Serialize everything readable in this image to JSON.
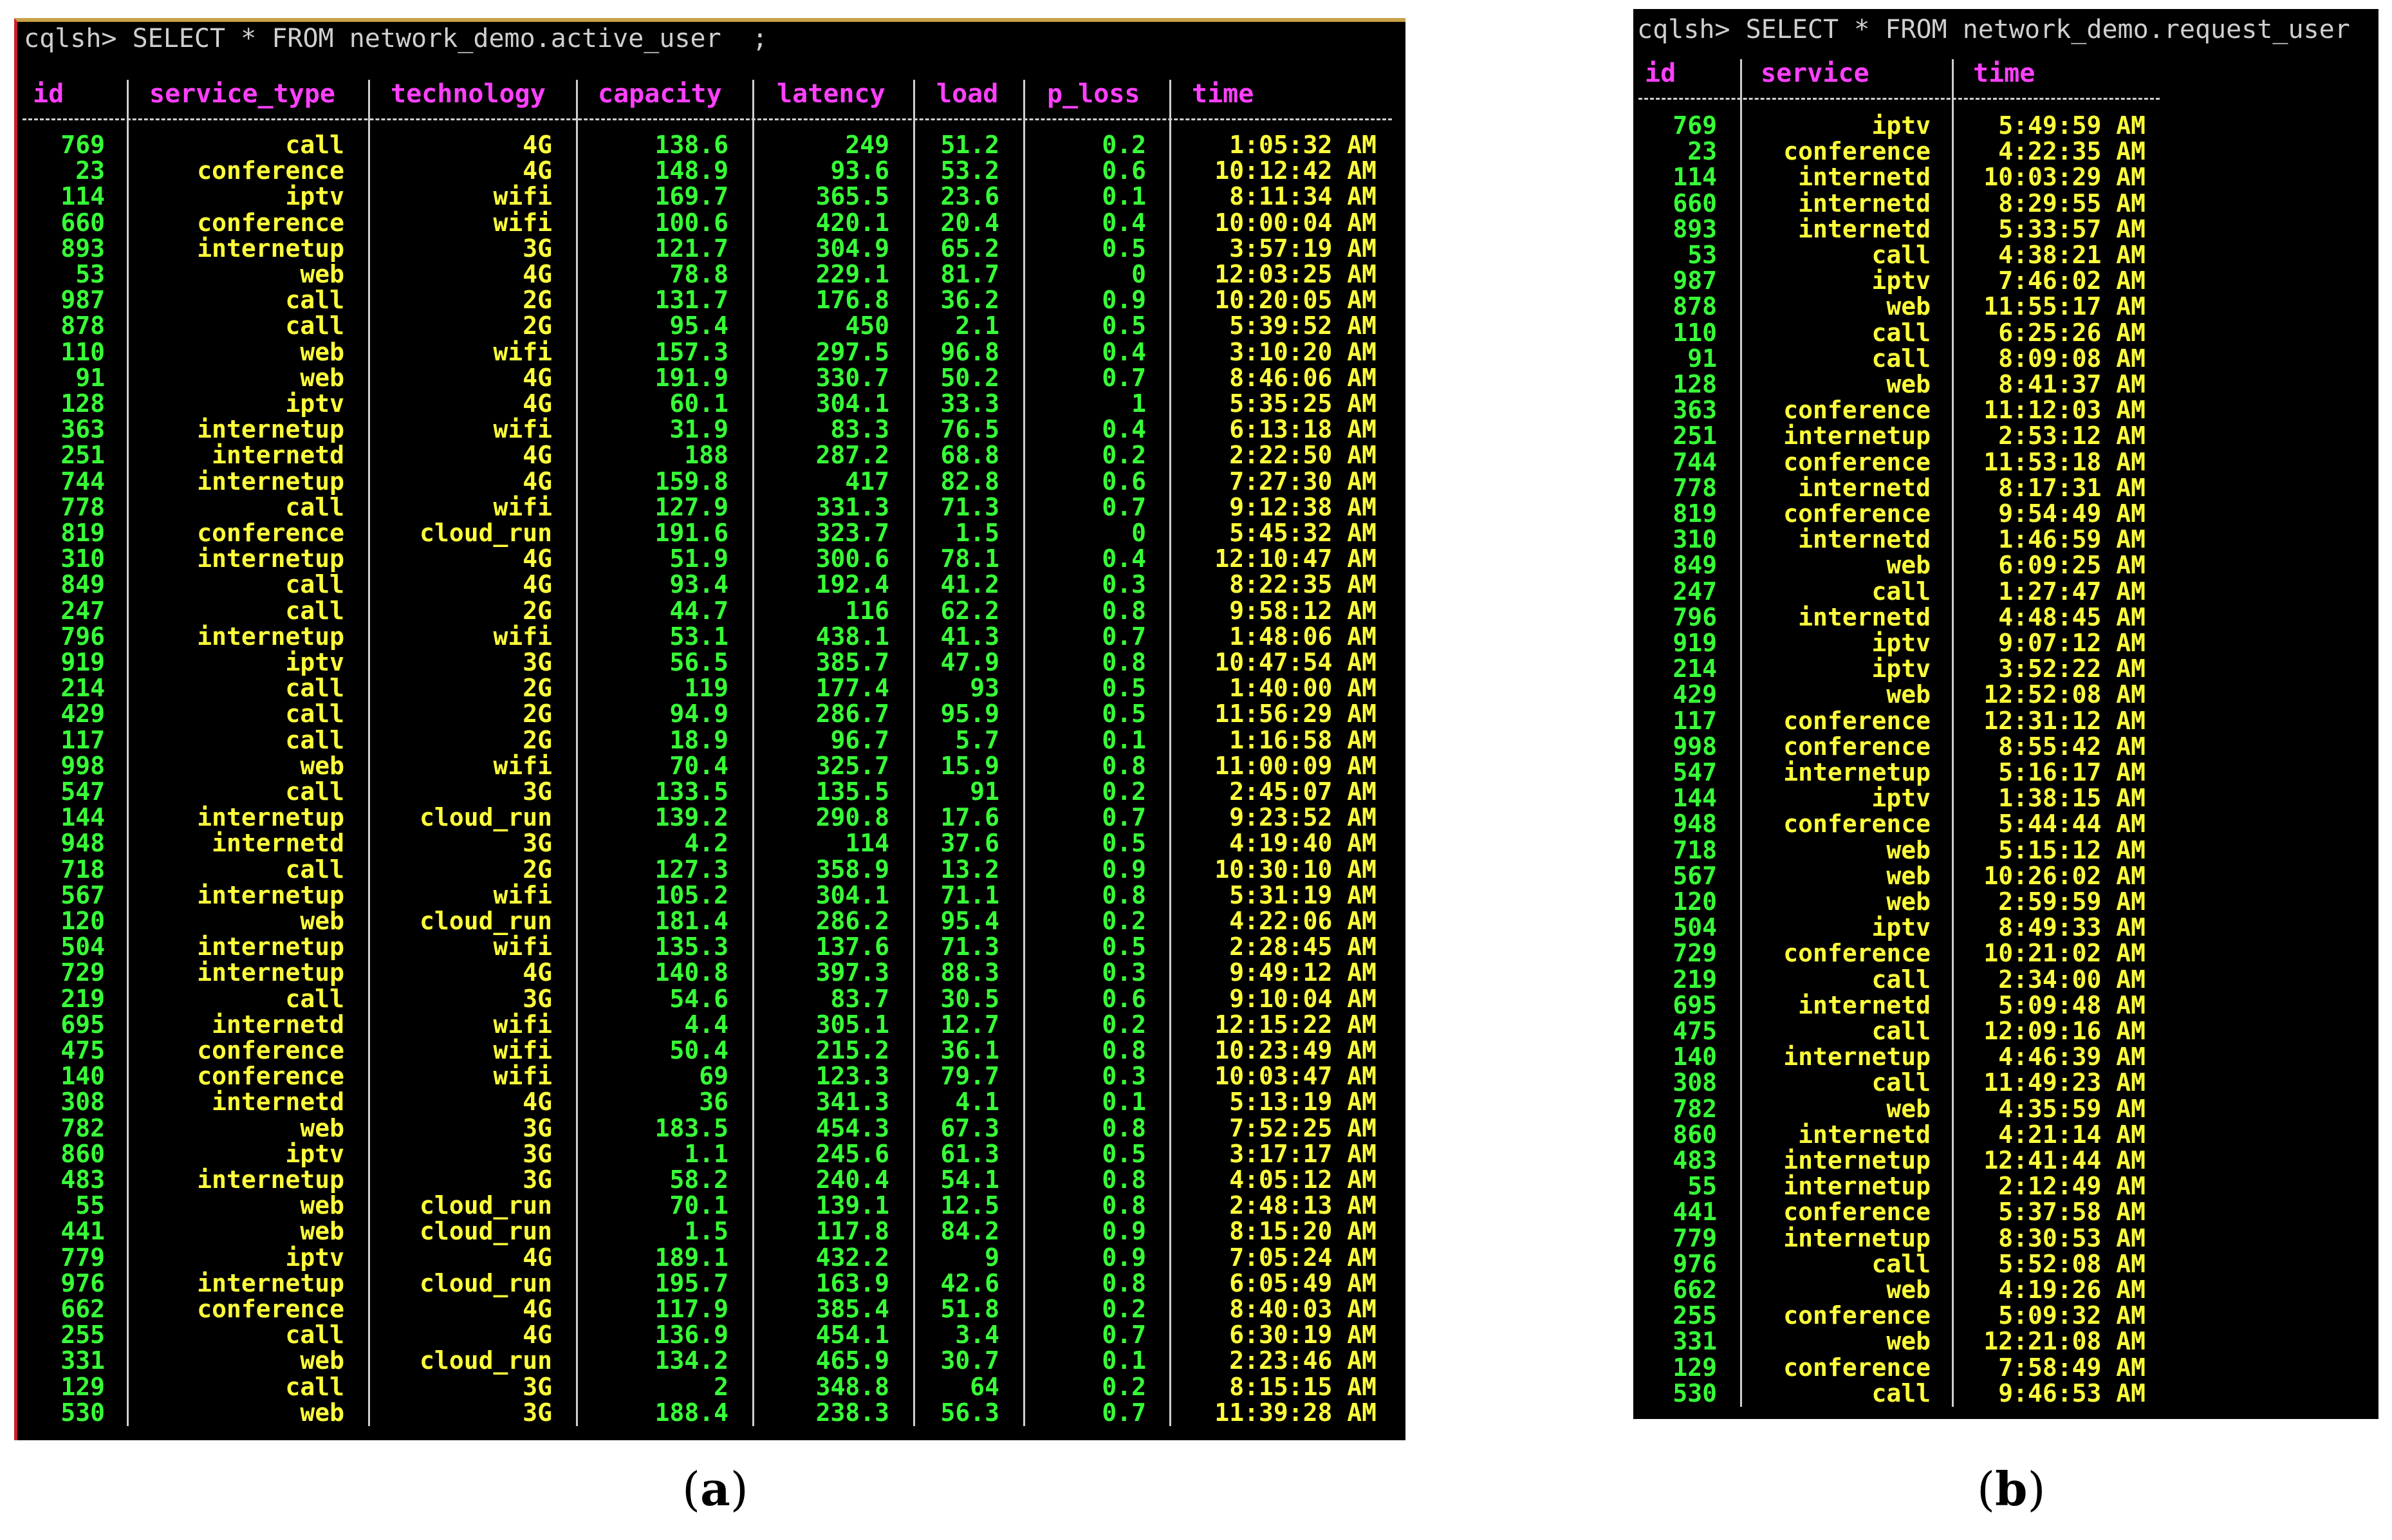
{
  "panel_a": {
    "prompt": "cqlsh> SELECT * FROM network_demo.active_user  ;",
    "headers": [
      "id",
      "service_type",
      "technology",
      "capacity",
      "latency",
      "load",
      "p_loss",
      "time"
    ],
    "rows": [
      [
        "769",
        "call",
        "4G",
        "138.6",
        "249",
        "51.2",
        "0.2",
        "1:05:32 AM"
      ],
      [
        "23",
        "conference",
        "4G",
        "148.9",
        "93.6",
        "53.2",
        "0.6",
        "10:12:42 AM"
      ],
      [
        "114",
        "iptv",
        "wifi",
        "169.7",
        "365.5",
        "23.6",
        "0.1",
        "8:11:34 AM"
      ],
      [
        "660",
        "conference",
        "wifi",
        "100.6",
        "420.1",
        "20.4",
        "0.4",
        "10:00:04 AM"
      ],
      [
        "893",
        "internetup",
        "3G",
        "121.7",
        "304.9",
        "65.2",
        "0.5",
        "3:57:19 AM"
      ],
      [
        "53",
        "web",
        "4G",
        "78.8",
        "229.1",
        "81.7",
        "0",
        "12:03:25 AM"
      ],
      [
        "987",
        "call",
        "2G",
        "131.7",
        "176.8",
        "36.2",
        "0.9",
        "10:20:05 AM"
      ],
      [
        "878",
        "call",
        "2G",
        "95.4",
        "450",
        "2.1",
        "0.5",
        "5:39:52 AM"
      ],
      [
        "110",
        "web",
        "wifi",
        "157.3",
        "297.5",
        "96.8",
        "0.4",
        "3:10:20 AM"
      ],
      [
        "91",
        "web",
        "4G",
        "191.9",
        "330.7",
        "50.2",
        "0.7",
        "8:46:06 AM"
      ],
      [
        "128",
        "iptv",
        "4G",
        "60.1",
        "304.1",
        "33.3",
        "1",
        "5:35:25 AM"
      ],
      [
        "363",
        "internetup",
        "wifi",
        "31.9",
        "83.3",
        "76.5",
        "0.4",
        "6:13:18 AM"
      ],
      [
        "251",
        "internetd",
        "4G",
        "188",
        "287.2",
        "68.8",
        "0.2",
        "2:22:50 AM"
      ],
      [
        "744",
        "internetup",
        "4G",
        "159.8",
        "417",
        "82.8",
        "0.6",
        "7:27:30 AM"
      ],
      [
        "778",
        "call",
        "wifi",
        "127.9",
        "331.3",
        "71.3",
        "0.7",
        "9:12:38 AM"
      ],
      [
        "819",
        "conference",
        "cloud_run",
        "191.6",
        "323.7",
        "1.5",
        "0",
        "5:45:32 AM"
      ],
      [
        "310",
        "internetup",
        "4G",
        "51.9",
        "300.6",
        "78.1",
        "0.4",
        "12:10:47 AM"
      ],
      [
        "849",
        "call",
        "4G",
        "93.4",
        "192.4",
        "41.2",
        "0.3",
        "8:22:35 AM"
      ],
      [
        "247",
        "call",
        "2G",
        "44.7",
        "116",
        "62.2",
        "0.8",
        "9:58:12 AM"
      ],
      [
        "796",
        "internetup",
        "wifi",
        "53.1",
        "438.1",
        "41.3",
        "0.7",
        "1:48:06 AM"
      ],
      [
        "919",
        "iptv",
        "3G",
        "56.5",
        "385.7",
        "47.9",
        "0.8",
        "10:47:54 AM"
      ],
      [
        "214",
        "call",
        "2G",
        "119",
        "177.4",
        "93",
        "0.5",
        "1:40:00 AM"
      ],
      [
        "429",
        "call",
        "2G",
        "94.9",
        "286.7",
        "95.9",
        "0.5",
        "11:56:29 AM"
      ],
      [
        "117",
        "call",
        "2G",
        "18.9",
        "96.7",
        "5.7",
        "0.1",
        "1:16:58 AM"
      ],
      [
        "998",
        "web",
        "wifi",
        "70.4",
        "325.7",
        "15.9",
        "0.8",
        "11:00:09 AM"
      ],
      [
        "547",
        "call",
        "3G",
        "133.5",
        "135.5",
        "91",
        "0.2",
        "2:45:07 AM"
      ],
      [
        "144",
        "internetup",
        "cloud_run",
        "139.2",
        "290.8",
        "17.6",
        "0.7",
        "9:23:52 AM"
      ],
      [
        "948",
        "internetd",
        "3G",
        "4.2",
        "114",
        "37.6",
        "0.5",
        "4:19:40 AM"
      ],
      [
        "718",
        "call",
        "2G",
        "127.3",
        "358.9",
        "13.2",
        "0.9",
        "10:30:10 AM"
      ],
      [
        "567",
        "internetup",
        "wifi",
        "105.2",
        "304.1",
        "71.1",
        "0.8",
        "5:31:19 AM"
      ],
      [
        "120",
        "web",
        "cloud_run",
        "181.4",
        "286.2",
        "95.4",
        "0.2",
        "4:22:06 AM"
      ],
      [
        "504",
        "internetup",
        "wifi",
        "135.3",
        "137.6",
        "71.3",
        "0.5",
        "2:28:45 AM"
      ],
      [
        "729",
        "internetup",
        "4G",
        "140.8",
        "397.3",
        "88.3",
        "0.3",
        "9:49:12 AM"
      ],
      [
        "219",
        "call",
        "3G",
        "54.6",
        "83.7",
        "30.5",
        "0.6",
        "9:10:04 AM"
      ],
      [
        "695",
        "internetd",
        "wifi",
        "4.4",
        "305.1",
        "12.7",
        "0.2",
        "12:15:22 AM"
      ],
      [
        "475",
        "conference",
        "wifi",
        "50.4",
        "215.2",
        "36.1",
        "0.8",
        "10:23:49 AM"
      ],
      [
        "140",
        "conference",
        "wifi",
        "69",
        "123.3",
        "79.7",
        "0.3",
        "10:03:47 AM"
      ],
      [
        "308",
        "internetd",
        "4G",
        "36",
        "341.3",
        "4.1",
        "0.1",
        "5:13:19 AM"
      ],
      [
        "782",
        "web",
        "3G",
        "183.5",
        "454.3",
        "67.3",
        "0.8",
        "7:52:25 AM"
      ],
      [
        "860",
        "iptv",
        "3G",
        "1.1",
        "245.6",
        "61.3",
        "0.5",
        "3:17:17 AM"
      ],
      [
        "483",
        "internetup",
        "3G",
        "58.2",
        "240.4",
        "54.1",
        "0.8",
        "4:05:12 AM"
      ],
      [
        "55",
        "web",
        "cloud_run",
        "70.1",
        "139.1",
        "12.5",
        "0.8",
        "2:48:13 AM"
      ],
      [
        "441",
        "web",
        "cloud_run",
        "1.5",
        "117.8",
        "84.2",
        "0.9",
        "8:15:20 AM"
      ],
      [
        "779",
        "iptv",
        "4G",
        "189.1",
        "432.2",
        "9",
        "0.9",
        "7:05:24 AM"
      ],
      [
        "976",
        "internetup",
        "cloud_run",
        "195.7",
        "163.9",
        "42.6",
        "0.8",
        "6:05:49 AM"
      ],
      [
        "662",
        "conference",
        "4G",
        "117.9",
        "385.4",
        "51.8",
        "0.2",
        "8:40:03 AM"
      ],
      [
        "255",
        "call",
        "4G",
        "136.9",
        "454.1",
        "3.4",
        "0.7",
        "6:30:19 AM"
      ],
      [
        "331",
        "web",
        "cloud_run",
        "134.2",
        "465.9",
        "30.7",
        "0.1",
        "2:23:46 AM"
      ],
      [
        "129",
        "call",
        "3G",
        "2",
        "348.8",
        "64",
        "0.2",
        "8:15:15 AM"
      ],
      [
        "530",
        "web",
        "3G",
        "188.4",
        "238.3",
        "56.3",
        "0.7",
        "11:39:28 AM"
      ]
    ],
    "caption_open": "(",
    "caption_letter": "a",
    "caption_close": ")"
  },
  "panel_b": {
    "prompt": "cqlsh> SELECT * FROM network_demo.request_user",
    "headers": [
      "id",
      "service",
      "time"
    ],
    "rows": [
      [
        "769",
        "iptv",
        "5:49:59 AM"
      ],
      [
        "23",
        "conference",
        "4:22:35 AM"
      ],
      [
        "114",
        "internetd",
        "10:03:29 AM"
      ],
      [
        "660",
        "internetd",
        "8:29:55 AM"
      ],
      [
        "893",
        "internetd",
        "5:33:57 AM"
      ],
      [
        "53",
        "call",
        "4:38:21 AM"
      ],
      [
        "987",
        "iptv",
        "7:46:02 AM"
      ],
      [
        "878",
        "web",
        "11:55:17 AM"
      ],
      [
        "110",
        "call",
        "6:25:26 AM"
      ],
      [
        "91",
        "call",
        "8:09:08 AM"
      ],
      [
        "128",
        "web",
        "8:41:37 AM"
      ],
      [
        "363",
        "conference",
        "11:12:03 AM"
      ],
      [
        "251",
        "internetup",
        "2:53:12 AM"
      ],
      [
        "744",
        "conference",
        "11:53:18 AM"
      ],
      [
        "778",
        "internetd",
        "8:17:31 AM"
      ],
      [
        "819",
        "conference",
        "9:54:49 AM"
      ],
      [
        "310",
        "internetd",
        "1:46:59 AM"
      ],
      [
        "849",
        "web",
        "6:09:25 AM"
      ],
      [
        "247",
        "call",
        "1:27:47 AM"
      ],
      [
        "796",
        "internetd",
        "4:48:45 AM"
      ],
      [
        "919",
        "iptv",
        "9:07:12 AM"
      ],
      [
        "214",
        "iptv",
        "3:52:22 AM"
      ],
      [
        "429",
        "web",
        "12:52:08 AM"
      ],
      [
        "117",
        "conference",
        "12:31:12 AM"
      ],
      [
        "998",
        "conference",
        "8:55:42 AM"
      ],
      [
        "547",
        "internetup",
        "5:16:17 AM"
      ],
      [
        "144",
        "iptv",
        "1:38:15 AM"
      ],
      [
        "948",
        "conference",
        "5:44:44 AM"
      ],
      [
        "718",
        "web",
        "5:15:12 AM"
      ],
      [
        "567",
        "web",
        "10:26:02 AM"
      ],
      [
        "120",
        "web",
        "2:59:59 AM"
      ],
      [
        "504",
        "iptv",
        "8:49:33 AM"
      ],
      [
        "729",
        "conference",
        "10:21:02 AM"
      ],
      [
        "219",
        "call",
        "2:34:00 AM"
      ],
      [
        "695",
        "internetd",
        "5:09:48 AM"
      ],
      [
        "475",
        "call",
        "12:09:16 AM"
      ],
      [
        "140",
        "internetup",
        "4:46:39 AM"
      ],
      [
        "308",
        "call",
        "11:49:23 AM"
      ],
      [
        "782",
        "web",
        "4:35:59 AM"
      ],
      [
        "860",
        "internetd",
        "4:21:14 AM"
      ],
      [
        "483",
        "internetup",
        "12:41:44 AM"
      ],
      [
        "55",
        "internetup",
        "2:12:49 AM"
      ],
      [
        "441",
        "conference",
        "5:37:58 AM"
      ],
      [
        "779",
        "internetup",
        "8:30:53 AM"
      ],
      [
        "976",
        "call",
        "5:52:08 AM"
      ],
      [
        "662",
        "web",
        "4:19:26 AM"
      ],
      [
        "255",
        "conference",
        "5:09:32 AM"
      ],
      [
        "331",
        "web",
        "12:21:08 AM"
      ],
      [
        "129",
        "conference",
        "7:58:49 AM"
      ],
      [
        "530",
        "call",
        "9:46:53 AM"
      ]
    ],
    "caption_open": "(",
    "caption_letter": "b",
    "caption_close": ")"
  },
  "colors": {
    "background": "#000000",
    "header": "#ff40ff",
    "id_text": "#37ff37",
    "yellow_text": "#ffff3a",
    "green_text": "#37ff37",
    "prompt_text": "#cfcfcf"
  }
}
